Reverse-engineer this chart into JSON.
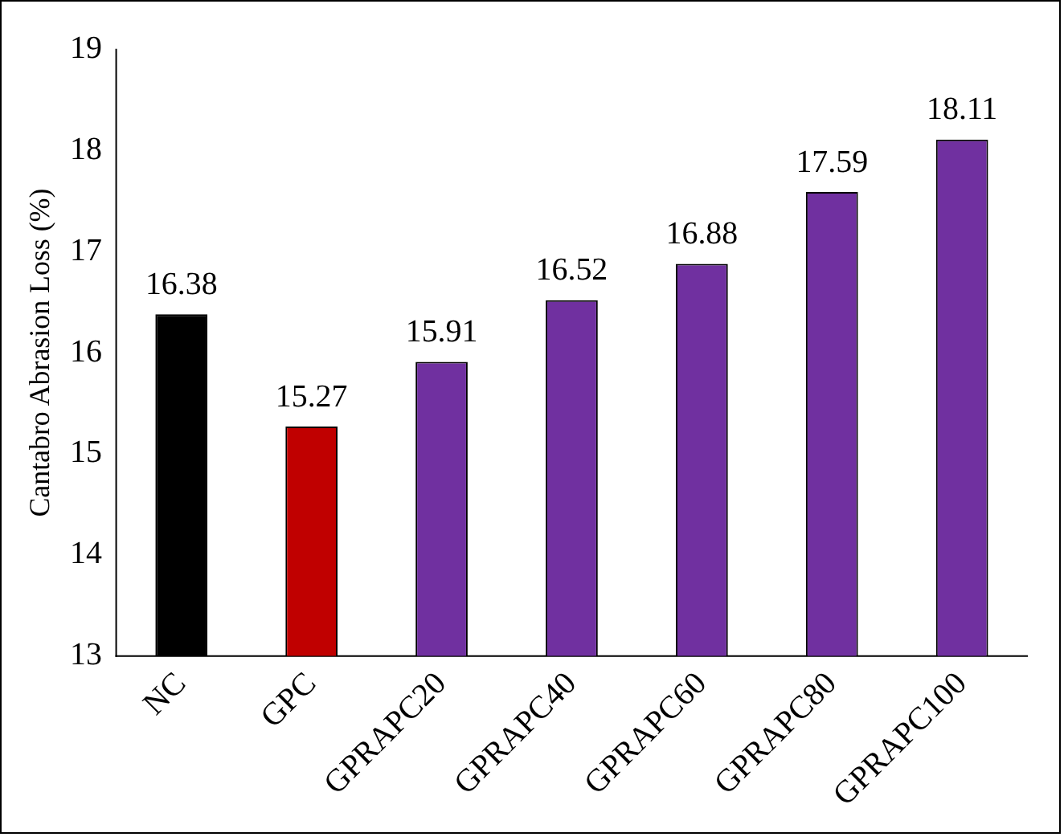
{
  "chart_data": {
    "type": "bar",
    "ylabel": "Cantabro Abrasion Loss (%)",
    "categories": [
      "NC",
      "GPC",
      "GPRAPC20",
      "GPRAPC40",
      "GPRAPC60",
      "GPRAPC80",
      "GPRAPC100"
    ],
    "values": [
      16.38,
      15.27,
      15.91,
      16.52,
      16.88,
      17.59,
      18.11
    ],
    "colors": [
      "#000000",
      "#c00000",
      "#7030a0",
      "#7030a0",
      "#7030a0",
      "#7030a0",
      "#7030a0"
    ],
    "ylim": [
      13,
      19
    ],
    "yticks": [
      13,
      14,
      15,
      16,
      17,
      18,
      19
    ],
    "grid": false,
    "legend": false,
    "data_labels": true
  }
}
